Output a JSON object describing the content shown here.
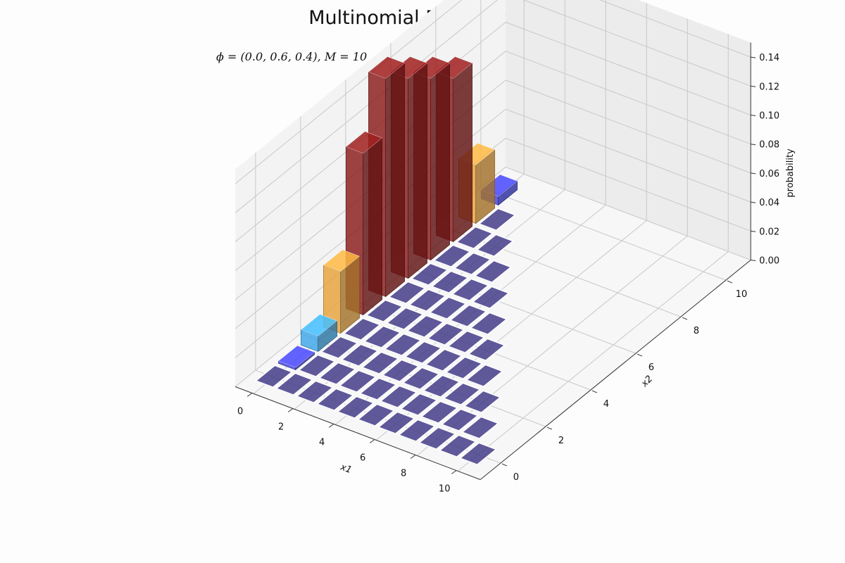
{
  "chart_data": {
    "type": "bar3d",
    "title": "Multinomial Distribution",
    "subtitle": "ϕ = (0.0, 0.6, 0.4), M = 10",
    "xlabel": "x1",
    "ylabel": "x2",
    "zlabel": "probability",
    "x_ticks": [
      "0",
      "2",
      "4",
      "6",
      "8",
      "10"
    ],
    "y_ticks": [
      "0",
      "2",
      "4",
      "6",
      "8",
      "10"
    ],
    "z_ticks": [
      "0.00",
      "0.02",
      "0.04",
      "0.06",
      "0.08",
      "0.10",
      "0.12",
      "0.14"
    ],
    "xlim": [
      0,
      10
    ],
    "ylim": [
      0,
      10
    ],
    "zlim": [
      0,
      0.15
    ],
    "grid": true,
    "note": "bars drawn at every (x1, x2) with x1 + x2 <= 10; height = P(x1, x2)",
    "bars": [
      {
        "x1": 0,
        "x2": 0,
        "p": 0.0001
      },
      {
        "x1": 0,
        "x2": 1,
        "p": 0.0016
      },
      {
        "x1": 0,
        "x2": 2,
        "p": 0.0106
      },
      {
        "x1": 0,
        "x2": 3,
        "p": 0.0425
      },
      {
        "x1": 0,
        "x2": 4,
        "p": 0.1115
      },
      {
        "x1": 0,
        "x2": 5,
        "p": 0.2007
      },
      {
        "x1": 0,
        "x2": 6,
        "p": 0.2508
      },
      {
        "x1": 0,
        "x2": 7,
        "p": 0.215
      },
      {
        "x1": 0,
        "x2": 8,
        "p": 0.1209
      },
      {
        "x1": 0,
        "x2": 9,
        "p": 0.0403
      },
      {
        "x1": 0,
        "x2": 10,
        "p": 0.006
      }
    ],
    "colors": {
      "low": "#3b3578",
      "blue": "#3f3fe0",
      "cyan": "#3aa6e8",
      "orange": "#e8a23a",
      "darkred": "#8b1a1a",
      "grid": "#c8c8c8"
    }
  }
}
